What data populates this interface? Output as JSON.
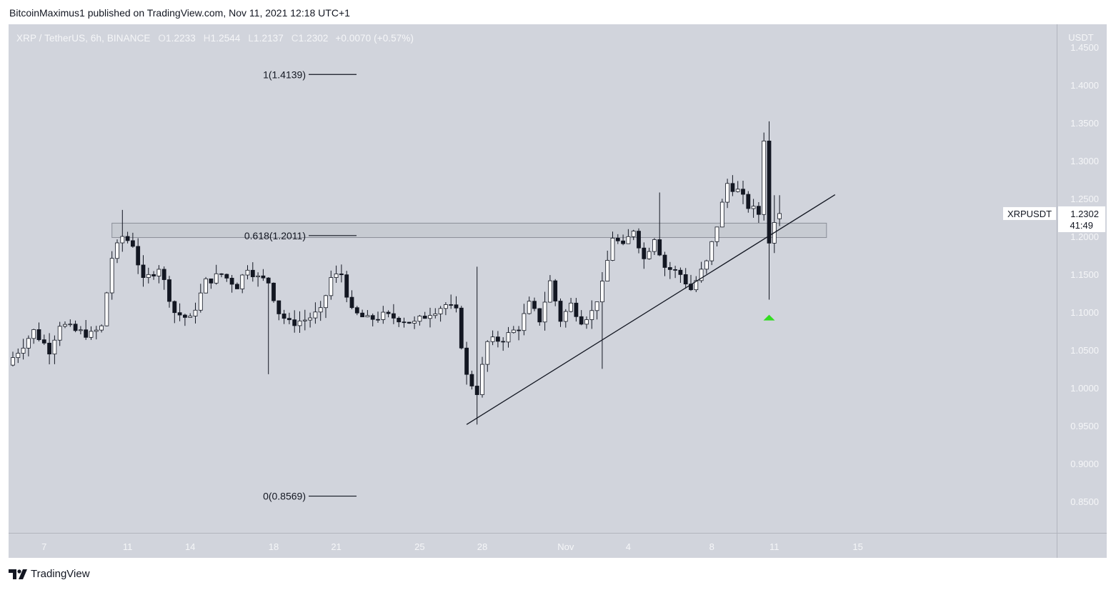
{
  "header": {
    "publisher_text": "BitcoinMaximus1 published on TradingView.com, Nov 11, 2021 12:18 UTC+1"
  },
  "legend": {
    "symbol": "XRP / TetherUS, 6h, BINANCE",
    "open_label": "O",
    "open": "1.2233",
    "high_label": "H",
    "high": "1.2544",
    "low_label": "L",
    "low": "1.2137",
    "close_label": "C",
    "close": "1.2302",
    "change": "+0.0070 (+0.57%)"
  },
  "price_axis": {
    "currency": "USDT",
    "top_partial_label": "1.4500",
    "labels": [
      "1.4000",
      "1.3500",
      "1.3000",
      "1.2500",
      "1.2000",
      "1.1500",
      "1.1000",
      "1.0500",
      "1.0000",
      "0.9500",
      "0.9000",
      "0.8500"
    ]
  },
  "time_axis": {
    "labels": [
      "7",
      "11",
      "14",
      "18",
      "21",
      "25",
      "28",
      "Nov",
      "4",
      "8",
      "11",
      "15"
    ]
  },
  "price_tag": {
    "symbol": "XRPUSDT",
    "price": "1.2302",
    "countdown": "41:49"
  },
  "footer": {
    "brand": "TradingView"
  },
  "colors": {
    "background": "#d1d4dc",
    "up_candle": "#ffffff",
    "down_candle": "#131722",
    "line": "#131722",
    "signal": "#33dd22",
    "text_light": "#f5f6f8",
    "zone_fill": "#c0c3cb"
  },
  "chart_data": {
    "type": "candlestick",
    "title": "XRP / TetherUS, 6h, BINANCE",
    "ylabel": "USDT",
    "ylim": [
      0.8,
      1.46
    ],
    "x_start": "2021-10-05 12:00",
    "x_end": "2021-11-11 12:00",
    "interval": "6h",
    "fib_levels": [
      {
        "label": "1(1.4139)",
        "value": 1.4139
      },
      {
        "label": "0.618(1.2011)",
        "value": 1.2011
      },
      {
        "label": "0(0.8569)",
        "value": 0.8569
      }
    ],
    "zone": {
      "from": 1.1985,
      "to": 1.2175,
      "start": "2021-10-10 06:00",
      "end": "2021-11-13 12:00"
    },
    "trendline": {
      "start": {
        "time": "2021-10-27 06:00",
        "price": 0.9515
      },
      "end": {
        "time": "2021-11-13 12:00",
        "price": 1.248
      }
    },
    "signal_arrow": {
      "time": "2021-11-10 18:00",
      "price": 1.0965,
      "shape": "up-triangle"
    },
    "candles": []
  }
}
